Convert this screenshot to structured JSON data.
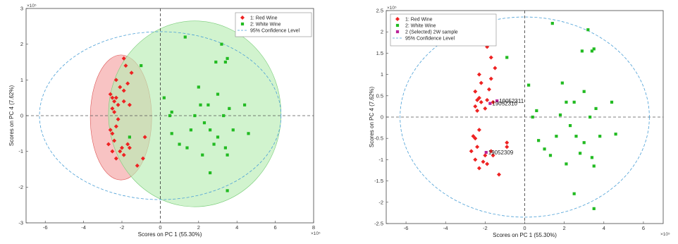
{
  "chart_data": [
    {
      "type": "scatter",
      "xlabel": "Scores on PC 1 (55.30%)",
      "ylabel": "Scores on PC 4 (7.62%)",
      "x_exponent": "×10⁵",
      "y_exponent": "×10⁵",
      "xlim": [
        -7,
        8
      ],
      "ylim": [
        -3,
        3
      ],
      "xticks": [
        "-6",
        "-4",
        "-2",
        "0",
        "2",
        "4",
        "6",
        "8"
      ],
      "yticks": [
        "3",
        "2",
        "1",
        "0",
        "-1",
        "-2",
        "-3"
      ],
      "legend": {
        "placement": "top-right",
        "entries": [
          "1: Red Wine",
          "2: White Wine",
          "95% Confidence Level"
        ]
      },
      "confidence_ellipse": {
        "cx": 0,
        "cy": 0,
        "rx": 6.3,
        "ry": 2.35
      },
      "group_ellipses": [
        {
          "group": "Red Wine",
          "cx": -2.05,
          "cy": -0.05,
          "rx": 1.6,
          "ry": 1.75,
          "color": "#f4a3a3"
        },
        {
          "group": "White Wine",
          "cx": 1.8,
          "cy": 0.05,
          "rx": 4.5,
          "ry": 2.6,
          "color": "#b8ecb4"
        }
      ],
      "series": [
        {
          "name": "1: Red Wine",
          "color": "#ee2222",
          "marker": "diamond",
          "points": [
            [
              -1.9,
              1.6
            ],
            [
              -1.8,
              1.4
            ],
            [
              -1.5,
              1.2
            ],
            [
              -2.3,
              1.0
            ],
            [
              -1.7,
              0.9
            ],
            [
              -2.1,
              0.8
            ],
            [
              -1.9,
              0.7
            ],
            [
              -2.6,
              0.6
            ],
            [
              -2.5,
              0.5
            ],
            [
              -2.4,
              0.4
            ],
            [
              -2.3,
              0.5
            ],
            [
              -2.2,
              0.3
            ],
            [
              -2.5,
              0.2
            ],
            [
              -2.4,
              0.1
            ],
            [
              -1.9,
              0.4
            ],
            [
              -1.6,
              0.3
            ],
            [
              -2.2,
              -0.1
            ],
            [
              -2.6,
              -0.4
            ],
            [
              -2.5,
              -0.5
            ],
            [
              -2.3,
              -0.3
            ],
            [
              -2.7,
              -0.8
            ],
            [
              -2.4,
              -0.7
            ],
            [
              -2.5,
              -1.0
            ],
            [
              -2.3,
              -1.2
            ],
            [
              -2.1,
              -1.0
            ],
            [
              -2.0,
              -0.9
            ],
            [
              -1.9,
              -1.1
            ],
            [
              -1.7,
              -0.8
            ],
            [
              -1.6,
              -0.9
            ],
            [
              -0.8,
              -0.6
            ],
            [
              -0.9,
              -1.2
            ],
            [
              -1.2,
              -1.4
            ]
          ]
        },
        {
          "name": "2: White Wine",
          "color": "#22bb22",
          "marker": "square",
          "points": [
            [
              1.3,
              2.2
            ],
            [
              3.2,
              2.0
            ],
            [
              3.5,
              1.6
            ],
            [
              2.9,
              1.5
            ],
            [
              3.4,
              1.5
            ],
            [
              -1.0,
              1.4
            ],
            [
              2.0,
              0.8
            ],
            [
              3.0,
              0.6
            ],
            [
              0.2,
              0.5
            ],
            [
              2.1,
              0.3
            ],
            [
              2.5,
              0.3
            ],
            [
              4.4,
              0.3
            ],
            [
              3.6,
              0.2
            ],
            [
              0.6,
              0.1
            ],
            [
              1.8,
              0.0
            ],
            [
              3.3,
              0.0
            ],
            [
              0.5,
              0.0
            ],
            [
              2.3,
              -0.2
            ],
            [
              4.6,
              -0.5
            ],
            [
              3.8,
              -0.4
            ],
            [
              2.6,
              -0.4
            ],
            [
              1.6,
              -0.4
            ],
            [
              3.0,
              -0.6
            ],
            [
              1.0,
              -0.8
            ],
            [
              2.8,
              -0.8
            ],
            [
              3.4,
              -0.9
            ],
            [
              2.2,
              -1.1
            ],
            [
              3.5,
              -1.1
            ],
            [
              -1.6,
              -0.6
            ],
            [
              2.6,
              -1.6
            ],
            [
              3.5,
              -2.1
            ],
            [
              0.6,
              -0.5
            ],
            [
              1.4,
              -0.9
            ]
          ]
        }
      ]
    },
    {
      "type": "scatter",
      "xlabel": "Scores on PC 1 (55.30%)",
      "ylabel": "Scores on PC 4 (7.62%)",
      "x_exponent": "×10⁵",
      "y_exponent": "×10⁵",
      "xlim": [
        -7,
        7
      ],
      "ylim": [
        -2.5,
        2.5
      ],
      "xticks": [
        "-6",
        "-4",
        "-2",
        "0",
        "2",
        "4",
        "6"
      ],
      "yticks": [
        "2.5",
        "2",
        "1.5",
        "1",
        "0.5",
        "0",
        "-0.5",
        "-1",
        "-1.5",
        "-2",
        "-2.5"
      ],
      "legend": {
        "placement": "top-left",
        "entries": [
          "1: Red Wine",
          "2: White Wine",
          "2 (Selected) 2W sample",
          "95% Confidence Level"
        ]
      },
      "confidence_ellipse": {
        "cx": 0,
        "cy": 0,
        "rx": 6.3,
        "ry": 2.35
      },
      "annotations": [
        {
          "text": "19052311",
          "x": -1.4,
          "y": 0.38
        },
        {
          "text": "19052310",
          "x": -1.75,
          "y": 0.32
        },
        {
          "text": "19052309",
          "x": -1.95,
          "y": -0.83
        }
      ],
      "series": [
        {
          "name": "1: Red Wine",
          "color": "#ee2222",
          "marker": "diamond",
          "points": [
            [
              -1.9,
              1.65
            ],
            [
              -1.7,
              1.4
            ],
            [
              -1.5,
              1.15
            ],
            [
              -2.3,
              1.0
            ],
            [
              -1.7,
              0.9
            ],
            [
              -2.2,
              0.8
            ],
            [
              -1.8,
              0.65
            ],
            [
              -2.5,
              0.6
            ],
            [
              -2.4,
              0.4
            ],
            [
              -2.3,
              0.45
            ],
            [
              -2.2,
              0.35
            ],
            [
              -2.5,
              0.25
            ],
            [
              -2.4,
              0.15
            ],
            [
              -1.9,
              0.4
            ],
            [
              -1.6,
              0.35
            ],
            [
              -2.0,
              0.2
            ],
            [
              -2.6,
              -0.45
            ],
            [
              -2.5,
              -0.5
            ],
            [
              -2.3,
              -0.3
            ],
            [
              -2.7,
              -0.8
            ],
            [
              -2.4,
              -0.7
            ],
            [
              -2.5,
              -1.0
            ],
            [
              -2.3,
              -1.2
            ],
            [
              -2.1,
              -1.05
            ],
            [
              -2.0,
              -0.9
            ],
            [
              -1.9,
              -1.1
            ],
            [
              -1.7,
              -0.8
            ],
            [
              -1.6,
              -0.9
            ],
            [
              -0.9,
              -0.6
            ],
            [
              -0.9,
              -0.7
            ],
            [
              -1.3,
              -1.35
            ]
          ]
        },
        {
          "name": "2: White Wine",
          "color": "#22bb22",
          "marker": "square",
          "points": [
            [
              1.4,
              2.2
            ],
            [
              3.2,
              2.05
            ],
            [
              3.5,
              1.6
            ],
            [
              2.9,
              1.55
            ],
            [
              3.4,
              1.55
            ],
            [
              -0.9,
              1.4
            ],
            [
              1.9,
              0.8
            ],
            [
              3.0,
              0.6
            ],
            [
              0.2,
              0.75
            ],
            [
              2.1,
              0.35
            ],
            [
              2.5,
              0.35
            ],
            [
              4.4,
              0.35
            ],
            [
              3.6,
              0.2
            ],
            [
              0.6,
              0.15
            ],
            [
              1.8,
              0.05
            ],
            [
              3.3,
              0.0
            ],
            [
              0.4,
              0.0
            ],
            [
              2.3,
              -0.2
            ],
            [
              4.6,
              -0.4
            ],
            [
              3.8,
              -0.45
            ],
            [
              2.6,
              -0.45
            ],
            [
              1.6,
              -0.45
            ],
            [
              3.0,
              -0.6
            ],
            [
              1.0,
              -0.75
            ],
            [
              2.8,
              -0.85
            ],
            [
              3.4,
              -0.95
            ],
            [
              2.1,
              -1.1
            ],
            [
              3.5,
              -1.15
            ],
            [
              2.5,
              -1.8
            ],
            [
              3.5,
              -2.15
            ],
            [
              0.7,
              -0.55
            ],
            [
              1.3,
              -0.9
            ]
          ]
        },
        {
          "name": "2 (Selected) 2W sample",
          "color": "#bb2299",
          "marker": "square",
          "points": [
            [
              -1.4,
              0.38
            ],
            [
              -1.75,
              0.32
            ],
            [
              -1.95,
              -0.83
            ]
          ]
        }
      ]
    }
  ]
}
